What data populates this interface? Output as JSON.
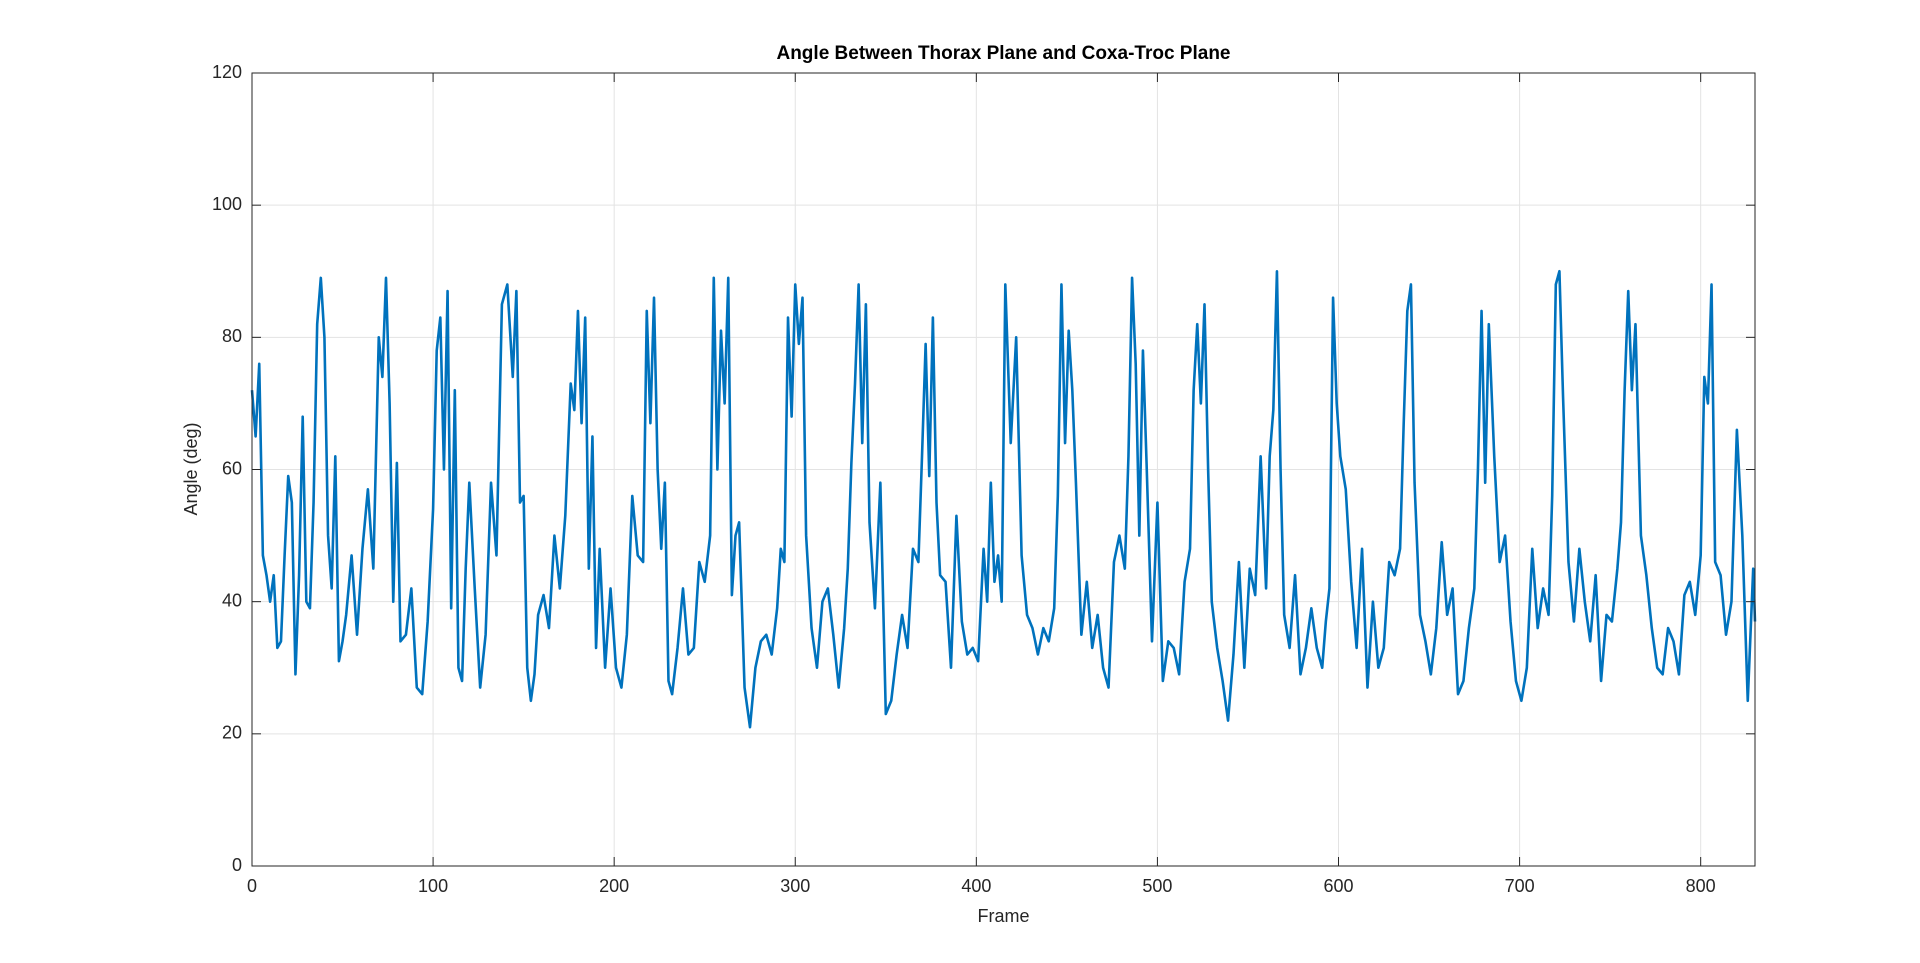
{
  "chart_data": {
    "type": "line",
    "title": "Angle Between Thorax Plane and Coxa-Troc Plane",
    "xlabel": "Frame",
    "ylabel": "Angle (deg)",
    "color": "#0072bd",
    "grid": true,
    "xlim": [
      0,
      830
    ],
    "ylim": [
      0,
      120
    ],
    "xticks": [
      0,
      100,
      200,
      300,
      400,
      500,
      600,
      700,
      800
    ],
    "yticks": [
      0,
      20,
      40,
      60,
      80,
      100,
      120
    ],
    "x": [
      0,
      2,
      4,
      6,
      8,
      10,
      12,
      14,
      16,
      18,
      20,
      22,
      24,
      26,
      28,
      30,
      32,
      34,
      36,
      38,
      40,
      42,
      44,
      46,
      48,
      50,
      52,
      55,
      58,
      61,
      64,
      67,
      70,
      72,
      74,
      76,
      78,
      80,
      82,
      85,
      88,
      91,
      94,
      97,
      100,
      102,
      104,
      106,
      108,
      110,
      112,
      114,
      116,
      118,
      120,
      123,
      126,
      129,
      132,
      135,
      138,
      141,
      144,
      146,
      148,
      150,
      152,
      154,
      156,
      158,
      161,
      164,
      167,
      170,
      173,
      176,
      178,
      180,
      182,
      184,
      186,
      188,
      190,
      192,
      195,
      198,
      201,
      204,
      207,
      210,
      213,
      216,
      218,
      220,
      222,
      224,
      226,
      228,
      230,
      232,
      235,
      238,
      241,
      244,
      247,
      250,
      253,
      255,
      257,
      259,
      261,
      263,
      265,
      267,
      269,
      272,
      275,
      278,
      281,
      284,
      287,
      290,
      292,
      294,
      296,
      298,
      300,
      302,
      304,
      306,
      309,
      312,
      315,
      318,
      321,
      324,
      327,
      329,
      331,
      333,
      335,
      337,
      339,
      341,
      344,
      347,
      350,
      353,
      356,
      359,
      362,
      365,
      368,
      370,
      372,
      374,
      376,
      378,
      380,
      383,
      386,
      389,
      392,
      395,
      398,
      401,
      404,
      406,
      408,
      410,
      412,
      414,
      416,
      419,
      422,
      425,
      428,
      431,
      434,
      437,
      440,
      443,
      445,
      447,
      449,
      451,
      453,
      455,
      458,
      461,
      464,
      467,
      470,
      473,
      476,
      479,
      482,
      484,
      486,
      488,
      490,
      492,
      494,
      497,
      500,
      503,
      506,
      509,
      512,
      515,
      518,
      520,
      522,
      524,
      526,
      528,
      530,
      533,
      536,
      539,
      542,
      545,
      548,
      551,
      554,
      557,
      560,
      562,
      564,
      566,
      568,
      570,
      573,
      576,
      579,
      582,
      585,
      588,
      591,
      593,
      595,
      597,
      599,
      601,
      604,
      607,
      610,
      613,
      616,
      619,
      622,
      625,
      628,
      631,
      634,
      636,
      638,
      640,
      642,
      645,
      648,
      651,
      654,
      657,
      660,
      663,
      666,
      669,
      672,
      675,
      677,
      679,
      681,
      683,
      686,
      689,
      692,
      695,
      698,
      701,
      704,
      707,
      710,
      713,
      716,
      718,
      720,
      722,
      724,
      727,
      730,
      733,
      736,
      739,
      742,
      745,
      748,
      751,
      754,
      756,
      758,
      760,
      762,
      764,
      767,
      770,
      773,
      776,
      779,
      782,
      785,
      788,
      791,
      794,
      797,
      800,
      802,
      804,
      806,
      808,
      811,
      814,
      817,
      820,
      823,
      826,
      829,
      830
    ],
    "values": [
      72,
      65,
      76,
      47,
      44,
      40,
      44,
      33,
      34,
      47,
      59,
      55,
      29,
      44,
      68,
      40,
      39,
      55,
      82,
      89,
      80,
      50,
      42,
      62,
      31,
      34,
      38,
      47,
      35,
      48,
      57,
      45,
      80,
      74,
      89,
      70,
      40,
      61,
      34,
      35,
      42,
      27,
      26,
      37,
      54,
      78,
      83,
      60,
      87,
      39,
      72,
      30,
      28,
      45,
      58,
      42,
      27,
      35,
      58,
      47,
      85,
      88,
      74,
      87,
      55,
      56,
      30,
      25,
      29,
      38,
      41,
      36,
      50,
      42,
      53,
      73,
      69,
      84,
      67,
      83,
      45,
      65,
      33,
      48,
      30,
      42,
      30,
      27,
      35,
      56,
      47,
      46,
      84,
      67,
      86,
      60,
      48,
      58,
      28,
      26,
      33,
      42,
      32,
      33,
      46,
      43,
      50,
      89,
      60,
      81,
      70,
      89,
      41,
      50,
      52,
      27,
      21,
      30,
      34,
      35,
      32,
      39,
      48,
      46,
      83,
      68,
      88,
      79,
      86,
      50,
      36,
      30,
      40,
      42,
      35,
      27,
      36,
      45,
      61,
      73,
      88,
      64,
      85,
      52,
      39,
      58,
      23,
      25,
      32,
      38,
      33,
      48,
      46,
      62,
      79,
      59,
      83,
      55,
      44,
      43,
      30,
      53,
      37,
      32,
      33,
      31,
      48,
      40,
      58,
      43,
      47,
      40,
      88,
      64,
      80,
      47,
      38,
      36,
      32,
      36,
      34,
      39,
      56,
      88,
      64,
      81,
      72,
      58,
      35,
      43,
      33,
      38,
      30,
      27,
      46,
      50,
      45,
      62,
      89,
      76,
      50,
      78,
      61,
      34,
      55,
      28,
      34,
      33,
      29,
      43,
      48,
      72,
      82,
      70,
      85,
      60,
      40,
      33,
      28,
      22,
      32,
      46,
      30,
      45,
      41,
      62,
      42,
      62,
      69,
      90,
      60,
      38,
      33,
      44,
      29,
      33,
      39,
      33,
      30,
      37,
      42,
      86,
      70,
      62,
      57,
      43,
      33,
      48,
      27,
      40,
      30,
      33,
      46,
      44,
      48,
      67,
      84,
      88,
      58,
      38,
      34,
      29,
      36,
      49,
      38,
      42,
      26,
      28,
      36,
      42,
      60,
      84,
      58,
      82,
      62,
      46,
      50,
      37,
      28,
      25,
      30,
      48,
      36,
      42,
      38,
      56,
      88,
      90,
      71,
      46,
      37,
      48,
      40,
      34,
      44,
      28,
      38,
      37,
      45,
      52,
      72,
      87,
      72,
      82,
      50,
      44,
      36,
      30,
      29,
      36,
      34,
      29,
      41,
      43,
      38,
      47,
      74,
      70,
      88,
      46,
      44,
      35,
      40,
      66,
      50,
      25,
      45,
      37
    ]
  }
}
